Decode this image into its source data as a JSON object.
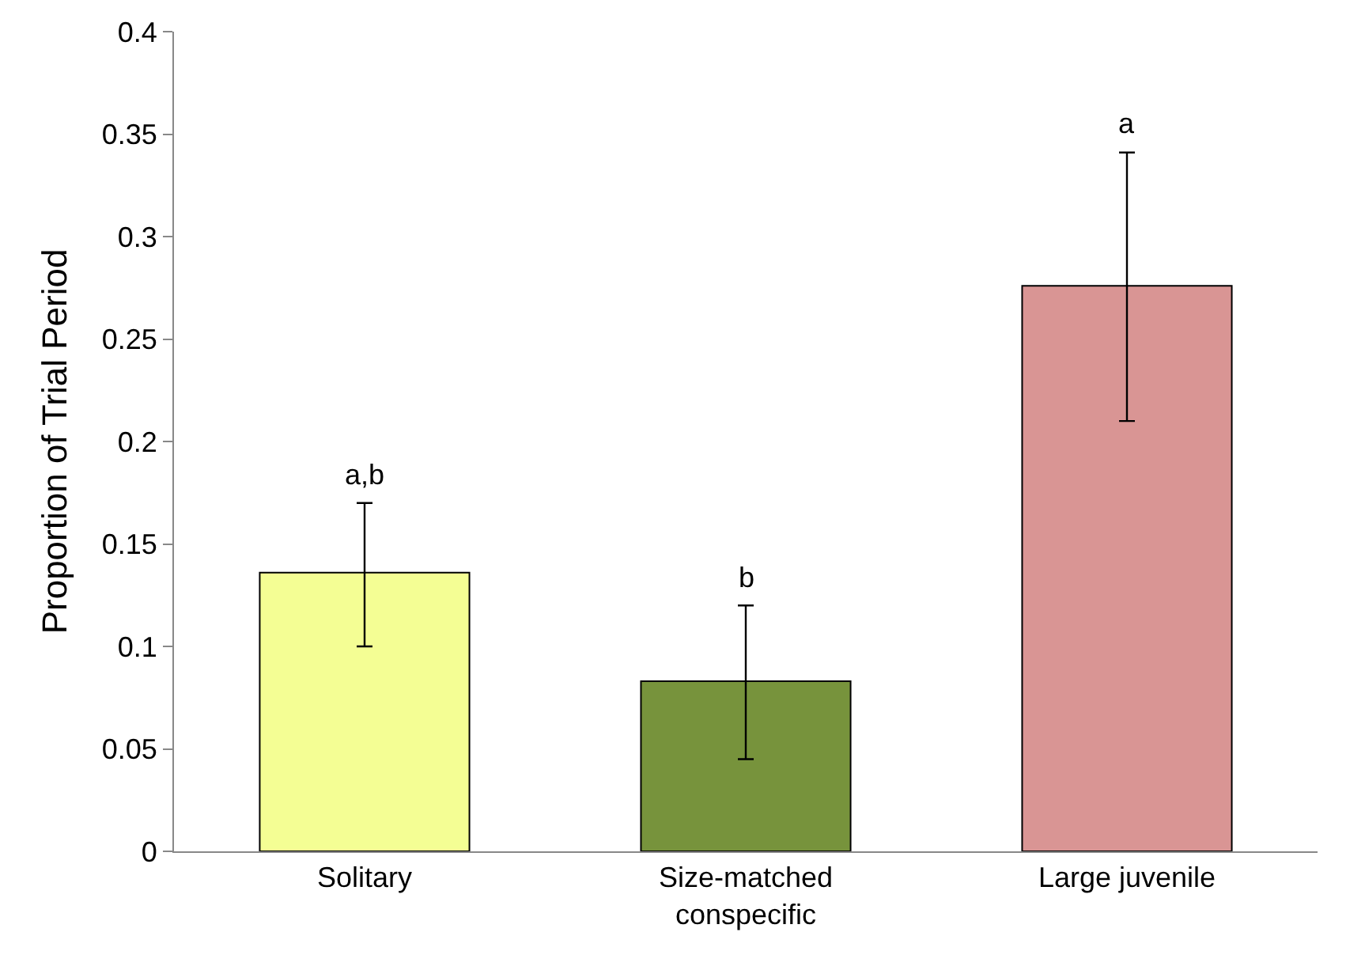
{
  "chart_data": {
    "type": "bar",
    "ylabel": "Proportion of Trial Period",
    "categories": [
      "Solitary",
      "Size-matched conspecific",
      "Large juvenile"
    ],
    "values": [
      0.136,
      0.083,
      0.276
    ],
    "colors": [
      "#f4fe94",
      "#77933c",
      "#d99594"
    ],
    "errors": [
      [
        0.1,
        0.17
      ],
      [
        0.045,
        0.12
      ],
      [
        0.21,
        0.341
      ]
    ],
    "ylim": [
      0,
      0.4
    ],
    "yticks": [
      0,
      0.05,
      0.1,
      0.15,
      0.2,
      0.25,
      0.3,
      0.35,
      0.4
    ],
    "grid": false,
    "annotations": [
      {
        "text": "a,b",
        "x": "Solitary",
        "y": 0.17
      },
      {
        "text": "b",
        "x": "Size-matched conspecific",
        "y": 0.12
      },
      {
        "text": "a",
        "x": "Large juvenile",
        "y": 0.341
      }
    ]
  }
}
